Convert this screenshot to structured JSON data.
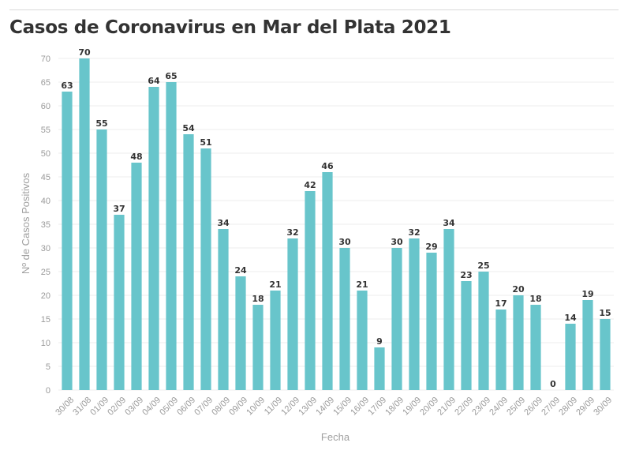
{
  "title": "Casos de Coronavirus en Mar del Plata 2021",
  "colors": {
    "bar": "#68c5cb",
    "grid": "#ececec",
    "text": "#333333",
    "axis_text": "#9a9a9a"
  },
  "chart_data": {
    "type": "bar",
    "title": "Casos de Coronavirus en Mar del Plata 2021",
    "xlabel": "Fecha",
    "ylabel": "Nº de Casos Positivos",
    "ylim": [
      0,
      70
    ],
    "yticks": [
      0,
      5,
      10,
      15,
      20,
      25,
      30,
      35,
      40,
      45,
      50,
      55,
      60,
      65,
      70
    ],
    "grid": true,
    "data_labels": true,
    "categories": [
      "30/08",
      "31/08",
      "01/09",
      "02/09",
      "03/09",
      "04/09",
      "05/09",
      "06/09",
      "07/09",
      "08/09",
      "09/09",
      "10/09",
      "11/09",
      "12/09",
      "13/09",
      "14/09",
      "15/09",
      "16/09",
      "17/09",
      "18/09",
      "19/09",
      "20/09",
      "21/09",
      "22/09",
      "23/09",
      "24/09",
      "25/09",
      "26/09",
      "27/09",
      "28/09",
      "29/09",
      "30/09"
    ],
    "values": [
      63,
      70,
      55,
      37,
      48,
      64,
      65,
      54,
      51,
      34,
      24,
      18,
      21,
      32,
      42,
      46,
      30,
      21,
      9,
      30,
      32,
      29,
      34,
      23,
      25,
      17,
      20,
      18,
      0,
      14,
      19,
      15
    ]
  }
}
